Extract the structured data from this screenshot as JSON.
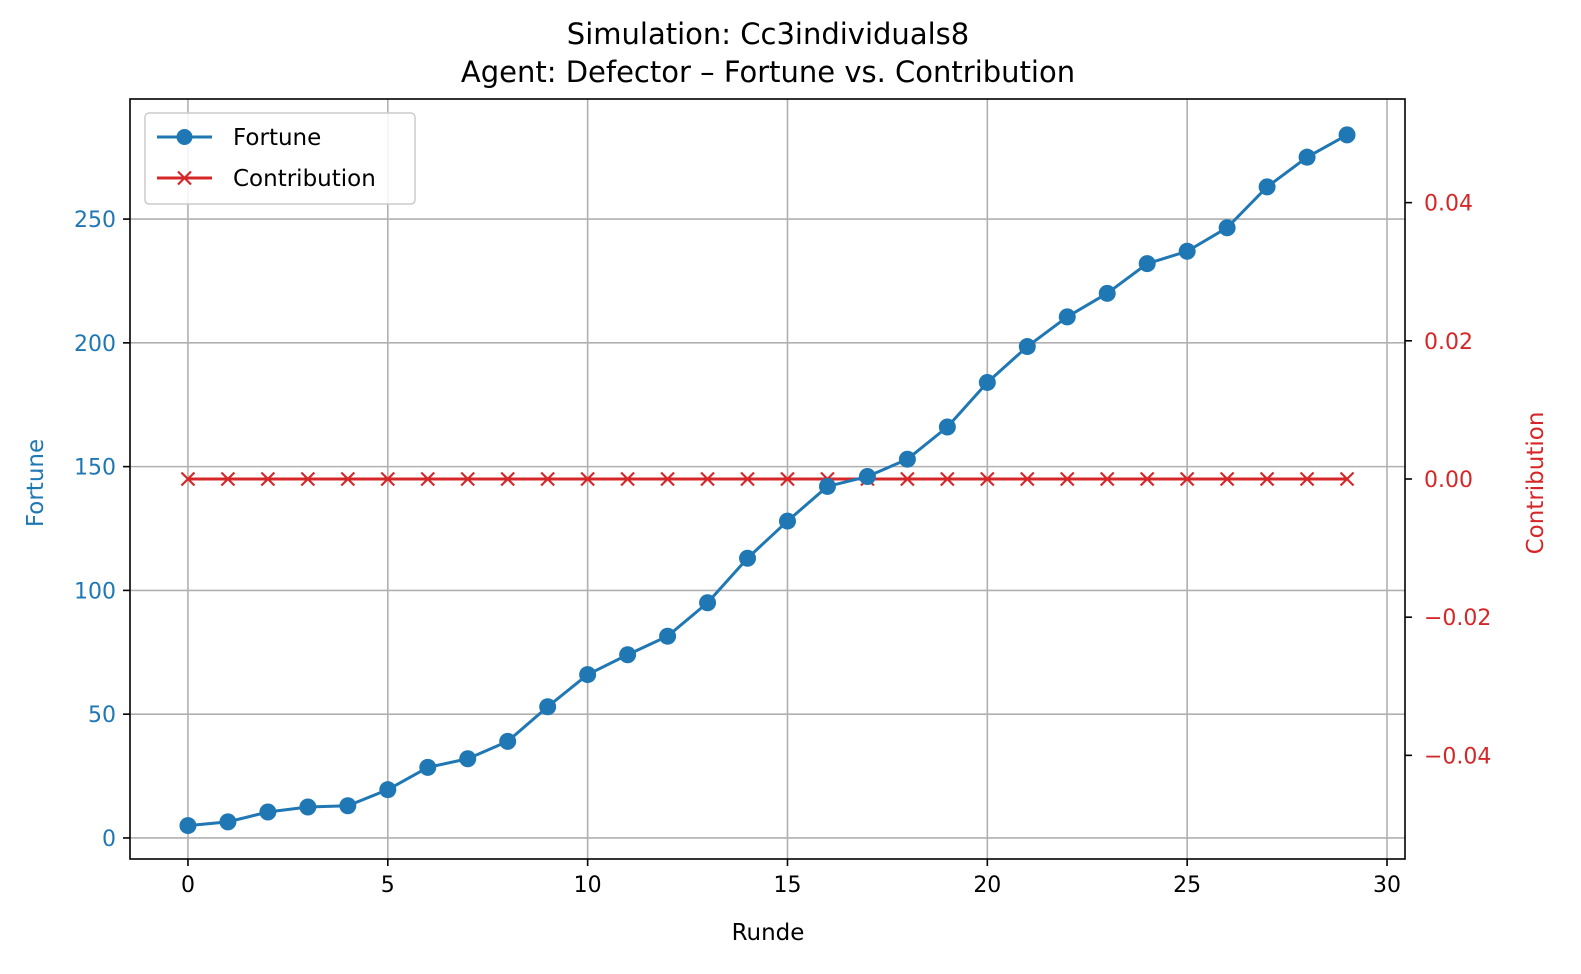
{
  "chart_data": {
    "type": "line",
    "title": "Simulation: Cc3individuals8",
    "subtitle": "Agent: Defector – Fortune vs. Contribution",
    "xlabel": "Runde",
    "ylabel_left": "Fortune",
    "ylabel_right": "Contribution",
    "xlim": [
      -1.45,
      30.45
    ],
    "ylim_left": [
      -8.5,
      298.5
    ],
    "ylim_right": [
      -0.055,
      0.055
    ],
    "x_ticks": [
      0,
      5,
      10,
      15,
      20,
      25,
      30
    ],
    "x_tick_labels": [
      "0",
      "5",
      "10",
      "15",
      "20",
      "25",
      "30"
    ],
    "y_left_ticks": [
      0,
      50,
      100,
      150,
      200,
      250
    ],
    "y_left_tick_labels": [
      "0",
      "50",
      "100",
      "150",
      "200",
      "250"
    ],
    "y_right_ticks": [
      -0.04,
      -0.02,
      0.0,
      0.02,
      0.04
    ],
    "y_right_tick_labels": [
      "−0.04",
      "−0.02",
      "0.00",
      "0.02",
      "0.04"
    ],
    "grid": true,
    "legend_position": "top-left",
    "x": [
      0,
      1,
      2,
      3,
      4,
      5,
      6,
      7,
      8,
      9,
      10,
      11,
      12,
      13,
      14,
      15,
      16,
      17,
      18,
      19,
      20,
      21,
      22,
      23,
      24,
      25,
      26,
      27,
      28,
      29
    ],
    "series": [
      {
        "name": "Fortune",
        "axis": "left",
        "marker": "circle",
        "color": "#1f77b4",
        "values": [
          5,
          6.5,
          10.5,
          12.5,
          13,
          19.5,
          28.5,
          32,
          39,
          53,
          66,
          74,
          81.5,
          95,
          113,
          128,
          142,
          146,
          153,
          166,
          184,
          198.5,
          210.5,
          220,
          232,
          237,
          246.5,
          263,
          275,
          284
        ]
      },
      {
        "name": "Contribution",
        "axis": "right",
        "marker": "x",
        "color": "#d62728",
        "values": [
          0,
          0,
          0,
          0,
          0,
          0,
          0,
          0,
          0,
          0,
          0,
          0,
          0,
          0,
          0,
          0,
          0,
          0,
          0,
          0,
          0,
          0,
          0,
          0,
          0,
          0,
          0,
          0,
          0,
          0
        ]
      }
    ]
  }
}
